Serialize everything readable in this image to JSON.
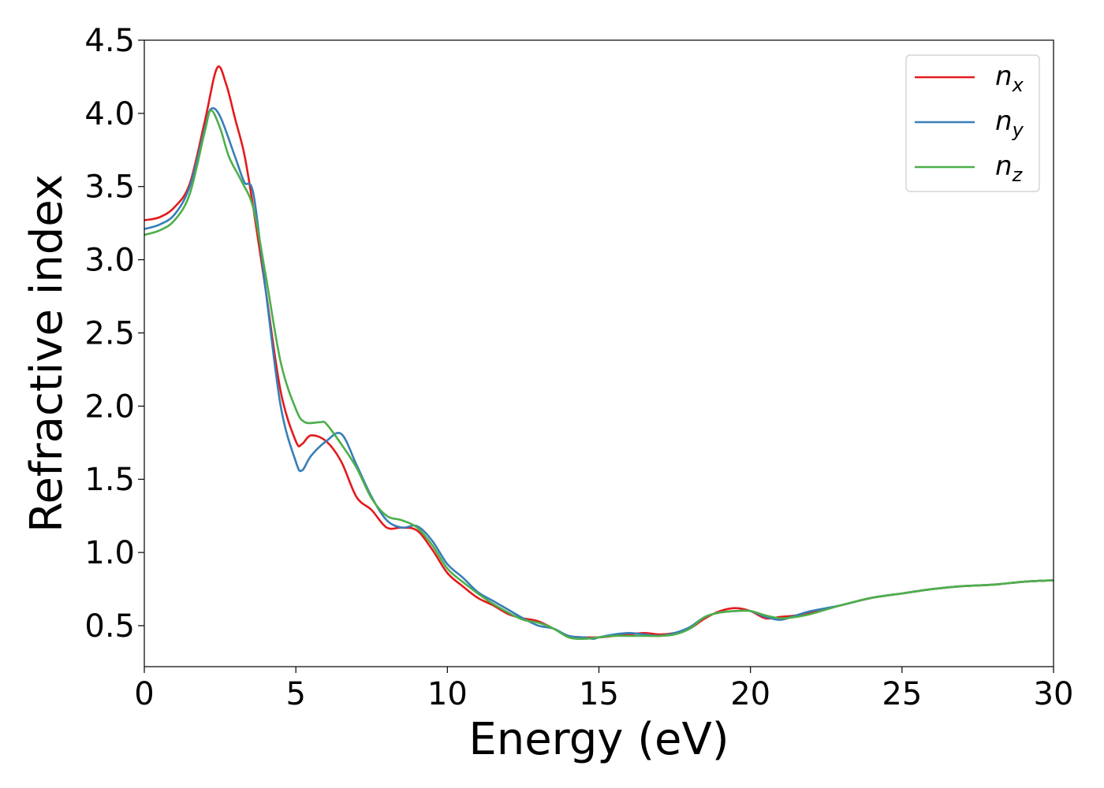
{
  "chart_data": {
    "type": "line",
    "xlabel": "Energy (eV)",
    "ylabel": "Refractive index",
    "xlim": [
      0,
      30
    ],
    "ylim": [
      0.22,
      4.5
    ],
    "xticks": [
      0,
      5,
      10,
      15,
      20,
      25,
      30
    ],
    "xtick_labels": [
      "0",
      "5",
      "10",
      "15",
      "20",
      "25",
      "30"
    ],
    "yticks": [
      0.5,
      1.0,
      1.5,
      2.0,
      2.5,
      3.0,
      3.5,
      4.0,
      4.5
    ],
    "ytick_labels": [
      "0.5",
      "1.0",
      "1.5",
      "2.0",
      "2.5",
      "3.0",
      "3.5",
      "4.0",
      "4.5"
    ],
    "grid": false,
    "legend_position": "top-right",
    "series": [
      {
        "name": "n",
        "subscript": "x",
        "color": "#e41a1c",
        "points": [
          [
            0,
            3.27
          ],
          [
            0.5,
            3.29
          ],
          [
            1,
            3.36
          ],
          [
            1.5,
            3.52
          ],
          [
            2.0,
            3.95
          ],
          [
            2.4,
            4.31
          ],
          [
            2.7,
            4.2
          ],
          [
            3.0,
            3.96
          ],
          [
            3.3,
            3.72
          ],
          [
            3.6,
            3.35
          ],
          [
            4.0,
            2.8
          ],
          [
            4.5,
            2.1
          ],
          [
            5.0,
            1.76
          ],
          [
            5.2,
            1.74
          ],
          [
            5.5,
            1.8
          ],
          [
            6.0,
            1.76
          ],
          [
            6.5,
            1.62
          ],
          [
            7.0,
            1.38
          ],
          [
            7.5,
            1.29
          ],
          [
            8.0,
            1.17
          ],
          [
            8.5,
            1.17
          ],
          [
            9.0,
            1.15
          ],
          [
            9.5,
            1.02
          ],
          [
            10.0,
            0.86
          ],
          [
            10.5,
            0.77
          ],
          [
            11.0,
            0.69
          ],
          [
            11.5,
            0.64
          ],
          [
            12.0,
            0.58
          ],
          [
            12.5,
            0.55
          ],
          [
            13.0,
            0.53
          ],
          [
            13.5,
            0.48
          ],
          [
            14.0,
            0.43
          ],
          [
            14.5,
            0.42
          ],
          [
            15.0,
            0.42
          ],
          [
            15.5,
            0.43
          ],
          [
            16.0,
            0.44
          ],
          [
            16.5,
            0.45
          ],
          [
            17.0,
            0.44
          ],
          [
            17.5,
            0.45
          ],
          [
            18.0,
            0.48
          ],
          [
            18.5,
            0.55
          ],
          [
            19.0,
            0.6
          ],
          [
            19.5,
            0.62
          ],
          [
            20.0,
            0.6
          ],
          [
            20.5,
            0.55
          ],
          [
            21.0,
            0.56
          ],
          [
            21.5,
            0.57
          ],
          [
            22.0,
            0.59
          ],
          [
            23.0,
            0.64
          ],
          [
            24.0,
            0.69
          ],
          [
            25.0,
            0.72
          ],
          [
            26.0,
            0.75
          ],
          [
            27.0,
            0.77
          ],
          [
            28.0,
            0.78
          ],
          [
            29.0,
            0.8
          ],
          [
            30.0,
            0.81
          ]
        ]
      },
      {
        "name": "n",
        "subscript": "y",
        "color": "#377eb8",
        "points": [
          [
            0,
            3.21
          ],
          [
            0.5,
            3.24
          ],
          [
            1,
            3.31
          ],
          [
            1.5,
            3.5
          ],
          [
            2.0,
            3.9
          ],
          [
            2.2,
            4.03
          ],
          [
            2.5,
            3.98
          ],
          [
            3.0,
            3.7
          ],
          [
            3.3,
            3.53
          ],
          [
            3.6,
            3.45
          ],
          [
            4.0,
            2.8
          ],
          [
            4.5,
            2.0
          ],
          [
            5.0,
            1.62
          ],
          [
            5.2,
            1.56
          ],
          [
            5.5,
            1.66
          ],
          [
            6.0,
            1.76
          ],
          [
            6.5,
            1.81
          ],
          [
            7.0,
            1.6
          ],
          [
            7.5,
            1.38
          ],
          [
            8.0,
            1.22
          ],
          [
            8.5,
            1.17
          ],
          [
            9.0,
            1.18
          ],
          [
            9.5,
            1.08
          ],
          [
            10.0,
            0.92
          ],
          [
            10.5,
            0.83
          ],
          [
            11.0,
            0.73
          ],
          [
            11.5,
            0.67
          ],
          [
            12.0,
            0.61
          ],
          [
            12.5,
            0.55
          ],
          [
            13.0,
            0.5
          ],
          [
            13.5,
            0.48
          ],
          [
            14.0,
            0.43
          ],
          [
            14.5,
            0.42
          ],
          [
            14.8,
            0.41
          ],
          [
            15.0,
            0.42
          ],
          [
            15.5,
            0.44
          ],
          [
            16.0,
            0.45
          ],
          [
            16.5,
            0.44
          ],
          [
            17.0,
            0.43
          ],
          [
            17.5,
            0.45
          ],
          [
            18.0,
            0.49
          ],
          [
            18.5,
            0.56
          ],
          [
            19.0,
            0.59
          ],
          [
            19.5,
            0.6
          ],
          [
            20.0,
            0.6
          ],
          [
            20.5,
            0.56
          ],
          [
            21.0,
            0.54
          ],
          [
            21.5,
            0.57
          ],
          [
            22.0,
            0.6
          ],
          [
            23.0,
            0.64
          ],
          [
            24.0,
            0.69
          ],
          [
            25.0,
            0.72
          ],
          [
            26.0,
            0.75
          ],
          [
            27.0,
            0.77
          ],
          [
            28.0,
            0.78
          ],
          [
            29.0,
            0.8
          ],
          [
            30.0,
            0.81
          ]
        ]
      },
      {
        "name": "n",
        "subscript": "z",
        "color": "#4daf4a",
        "points": [
          [
            0,
            3.17
          ],
          [
            0.5,
            3.2
          ],
          [
            1,
            3.27
          ],
          [
            1.5,
            3.45
          ],
          [
            2.0,
            3.88
          ],
          [
            2.2,
            4.02
          ],
          [
            2.5,
            3.9
          ],
          [
            2.8,
            3.7
          ],
          [
            3.2,
            3.54
          ],
          [
            3.6,
            3.35
          ],
          [
            4.0,
            2.9
          ],
          [
            4.5,
            2.3
          ],
          [
            5.0,
            1.98
          ],
          [
            5.3,
            1.89
          ],
          [
            5.8,
            1.89
          ],
          [
            6.0,
            1.88
          ],
          [
            6.5,
            1.74
          ],
          [
            7.0,
            1.58
          ],
          [
            7.5,
            1.37
          ],
          [
            8.0,
            1.25
          ],
          [
            8.5,
            1.22
          ],
          [
            9.0,
            1.17
          ],
          [
            9.5,
            1.05
          ],
          [
            10.0,
            0.89
          ],
          [
            10.5,
            0.8
          ],
          [
            11.0,
            0.72
          ],
          [
            11.5,
            0.65
          ],
          [
            12.0,
            0.59
          ],
          [
            12.5,
            0.54
          ],
          [
            13.0,
            0.52
          ],
          [
            13.5,
            0.48
          ],
          [
            14.0,
            0.42
          ],
          [
            14.5,
            0.41
          ],
          [
            15.0,
            0.42
          ],
          [
            15.5,
            0.43
          ],
          [
            16.0,
            0.43
          ],
          [
            16.5,
            0.43
          ],
          [
            17.0,
            0.43
          ],
          [
            17.5,
            0.44
          ],
          [
            18.0,
            0.48
          ],
          [
            18.5,
            0.56
          ],
          [
            19.0,
            0.59
          ],
          [
            19.5,
            0.6
          ],
          [
            20.0,
            0.6
          ],
          [
            20.5,
            0.57
          ],
          [
            21.0,
            0.55
          ],
          [
            21.5,
            0.56
          ],
          [
            22.0,
            0.58
          ],
          [
            23.0,
            0.64
          ],
          [
            24.0,
            0.69
          ],
          [
            25.0,
            0.72
          ],
          [
            26.0,
            0.75
          ],
          [
            27.0,
            0.77
          ],
          [
            28.0,
            0.78
          ],
          [
            29.0,
            0.8
          ],
          [
            30.0,
            0.81
          ]
        ]
      }
    ]
  }
}
